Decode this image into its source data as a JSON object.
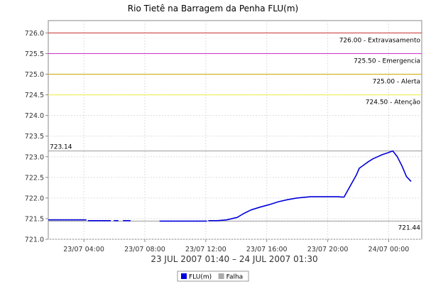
{
  "chart_data": {
    "type": "line",
    "title": "Rio Tietê na Barragem da Penha FLU(m)",
    "range_label": "23 JUL 2007 01:40 – 24 JUL 2007 01:30",
    "ylim": [
      721.0,
      726.3
    ],
    "xlim_hours": [
      0,
      24.5
    ],
    "y_ticks": [
      "721.0",
      "721.5",
      "722.0",
      "722.5",
      "723.0",
      "723.5",
      "724.0",
      "724.5",
      "725.0",
      "725.5",
      "726.0"
    ],
    "x_ticks": [
      {
        "label": "23/07 04:00",
        "value": 2.333
      },
      {
        "label": "23/07 08:00",
        "value": 6.333
      },
      {
        "label": "23/07 12:00",
        "value": 10.333
      },
      {
        "label": "23/07 16:00",
        "value": 14.333
      },
      {
        "label": "23/07 20:00",
        "value": 18.333
      },
      {
        "label": "24/07 00:00",
        "value": 22.333
      }
    ],
    "thresholds": [
      {
        "value": 726.0,
        "label": "726.00 - Extravasamento",
        "color": "#cc3333"
      },
      {
        "value": 725.5,
        "label": "725.50 - Emergencia",
        "color": "#cc33cc"
      },
      {
        "value": 725.0,
        "label": "725.00 - Alerta",
        "color": "#ccaa00"
      },
      {
        "value": 724.5,
        "label": "724.50 - Atenção",
        "color": "#eeee44"
      }
    ],
    "markers": [
      {
        "value": 723.14,
        "label": "723.14",
        "color": "#999999"
      },
      {
        "value": 721.44,
        "label": "721.44",
        "color": "#999999"
      }
    ],
    "legend": [
      {
        "name": "FLU(m)",
        "color": "#0000dd"
      },
      {
        "name": "Falha",
        "color": "#aaaaaa"
      }
    ],
    "series": [
      {
        "name": "FLU(m)",
        "color": "#0000dd",
        "segments": [
          {
            "x": [
              0.0,
              2.5
            ],
            "y": [
              721.47,
              721.47
            ]
          },
          {
            "x": [
              2.6,
              4.1
            ],
            "y": [
              721.45,
              721.45
            ]
          },
          {
            "x": [
              4.3,
              4.6
            ],
            "y": [
              721.45,
              721.45
            ]
          },
          {
            "x": [
              4.9,
              5.4
            ],
            "y": [
              721.45,
              721.45
            ]
          },
          {
            "x": [
              7.3,
              10.4
            ],
            "y": [
              721.44,
              721.44
            ]
          },
          {
            "x": [
              10.5,
              11.1,
              11.7,
              12.4,
              12.8,
              13.3,
              13.9,
              14.5,
              15.1,
              15.7,
              16.3,
              16.9,
              17.2,
              17.8,
              18.4,
              19.0,
              19.4
            ],
            "y": [
              721.45,
              721.45,
              721.47,
              721.53,
              721.62,
              721.71,
              721.78,
              721.84,
              721.91,
              721.96,
              722.0,
              722.02,
              722.03,
              722.03,
              722.03,
              722.03,
              722.02
            ]
          },
          {
            "x": [
              19.4,
              19.9,
              20.2,
              20.4,
              20.7,
              21.0,
              21.3,
              21.6,
              21.9,
              22.3,
              22.6,
              22.9,
              23.2,
              23.5,
              23.8
            ],
            "y": [
              722.02,
              722.35,
              722.55,
              722.72,
              722.8,
              722.88,
              722.95,
              723.0,
              723.05,
              723.1,
              723.14,
              723.0,
              722.78,
              722.52,
              722.4
            ]
          }
        ]
      }
    ],
    "grid": true,
    "legend_position": "bottom-center"
  }
}
